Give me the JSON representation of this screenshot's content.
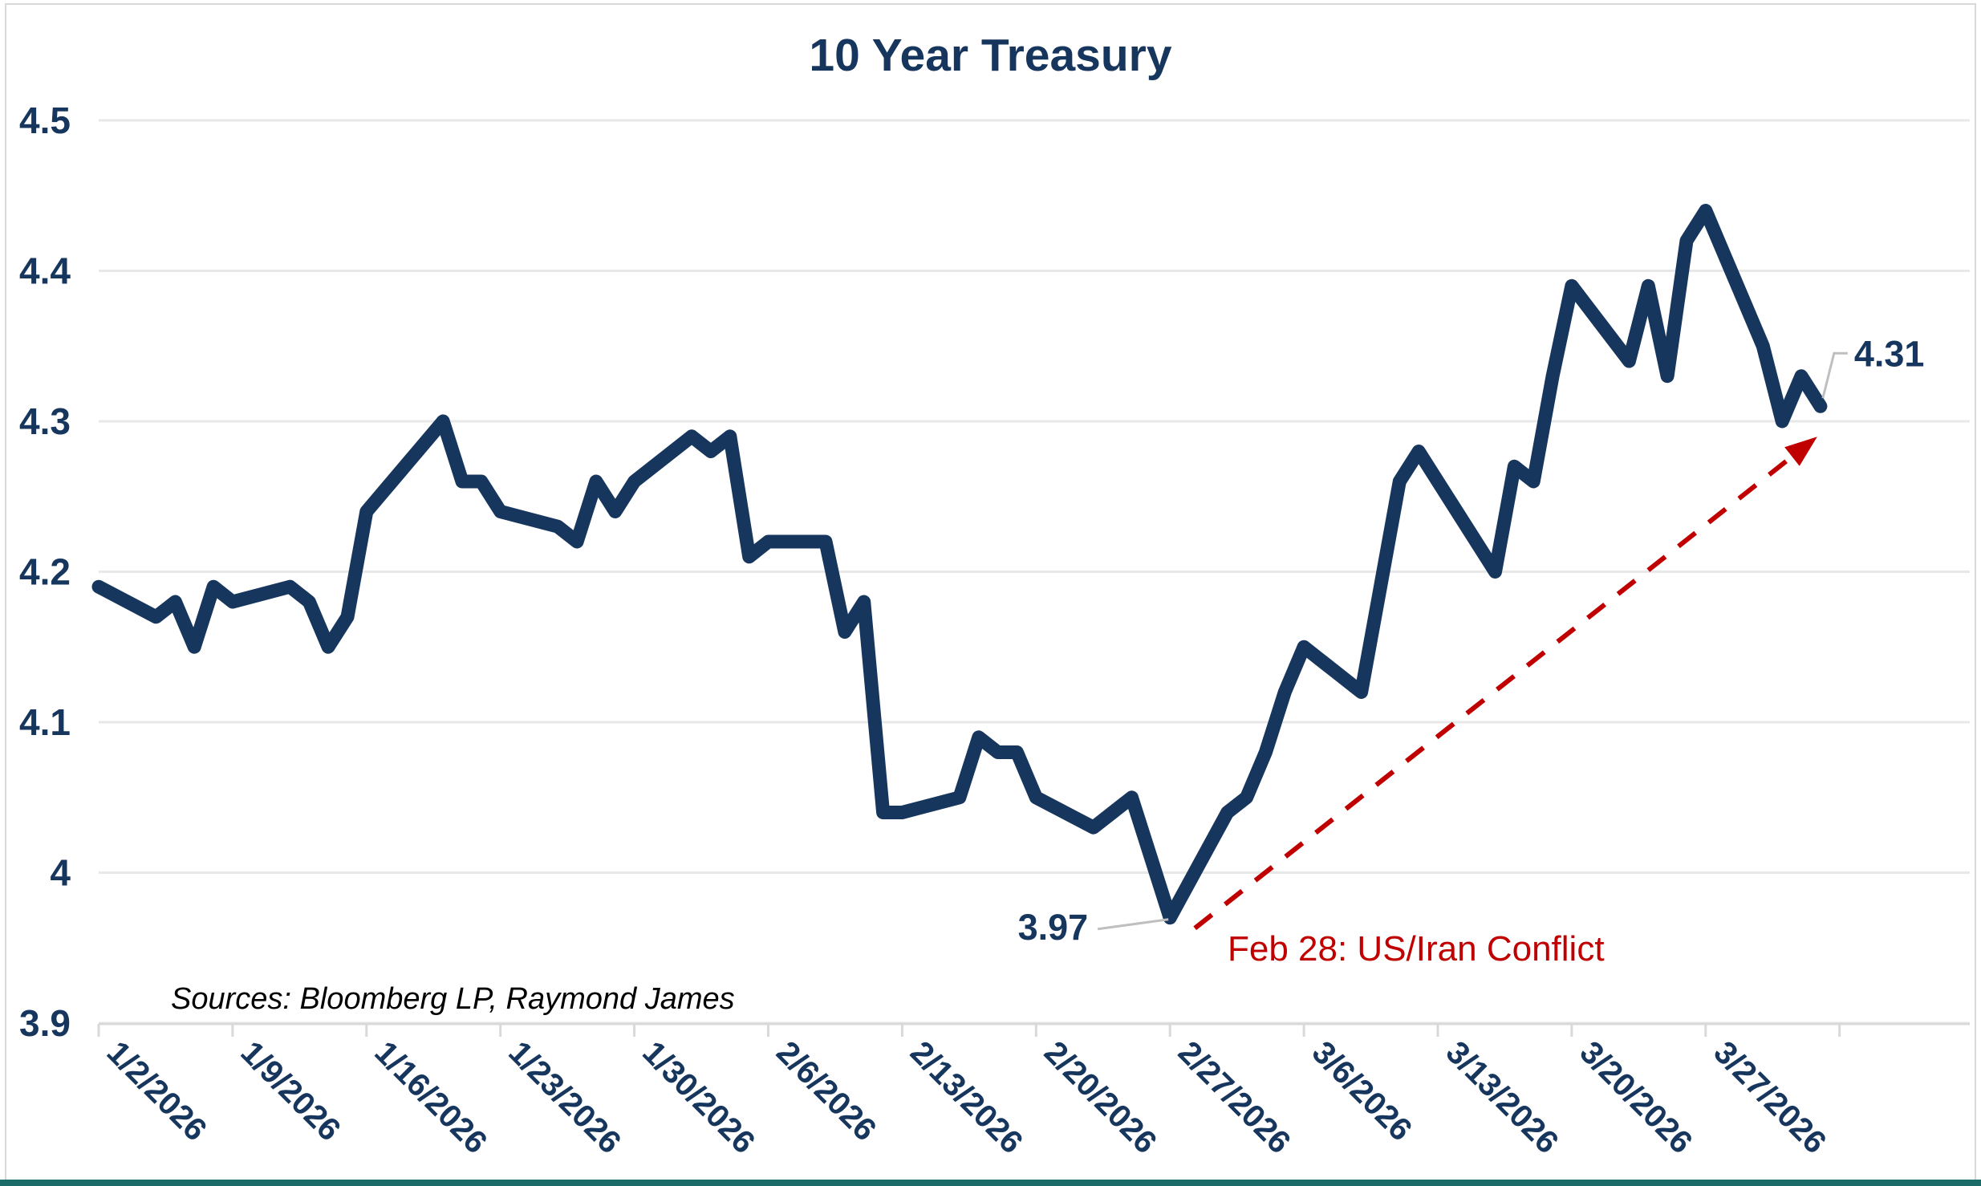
{
  "title": "10 Year Treasury",
  "source_note": "Sources: Bloomberg LP, Raymond James",
  "annotations": {
    "low_point_label": "3.97",
    "end_point_label": "4.31",
    "event_label": "Feb 28: US/Iran Conflict"
  },
  "colors": {
    "line": "#17365d",
    "text": "#17365d",
    "event_red": "#c00000",
    "gridline": "#e8e8e8",
    "axis": "#d9d9d9",
    "leader": "#bfbfbf",
    "bottom_bar_teal": "#1b6b68",
    "background": "#ffffff"
  },
  "chart_data": {
    "type": "line",
    "title": "10 Year Treasury",
    "xlabel": "",
    "ylabel": "",
    "ylim": [
      3.9,
      4.5
    ],
    "grid": true,
    "legend": "none",
    "y_tick_labels": [
      "4.5",
      "4.4",
      "4.3",
      "4.2",
      "4.1",
      "4",
      "3.9"
    ],
    "x_tick_labels": [
      "1/2/2026",
      "1/9/2026",
      "1/16/2026",
      "1/23/2026",
      "1/30/2026",
      "2/6/2026",
      "2/13/2026",
      "2/20/2026",
      "2/27/2026",
      "3/6/2026",
      "3/13/2026",
      "3/20/2026",
      "3/27/2026"
    ],
    "series": [
      {
        "name": "10 Year Treasury",
        "points": [
          [
            "1/2/2026",
            4.19
          ],
          [
            "1/5/2026",
            4.17
          ],
          [
            "1/6/2026",
            4.18
          ],
          [
            "1/7/2026",
            4.15
          ],
          [
            "1/8/2026",
            4.19
          ],
          [
            "1/9/2026",
            4.18
          ],
          [
            "1/12/2026",
            4.19
          ],
          [
            "1/13/2026",
            4.18
          ],
          [
            "1/14/2026",
            4.15
          ],
          [
            "1/15/2026",
            4.17
          ],
          [
            "1/16/2026",
            4.24
          ],
          [
            "1/20/2026",
            4.3
          ],
          [
            "1/21/2026",
            4.26
          ],
          [
            "1/22/2026",
            4.26
          ],
          [
            "1/23/2026",
            4.24
          ],
          [
            "1/26/2026",
            4.23
          ],
          [
            "1/27/2026",
            4.22
          ],
          [
            "1/28/2026",
            4.26
          ],
          [
            "1/29/2026",
            4.24
          ],
          [
            "1/30/2026",
            4.26
          ],
          [
            "2/2/2026",
            4.29
          ],
          [
            "2/3/2026",
            4.28
          ],
          [
            "2/4/2026",
            4.29
          ],
          [
            "2/5/2026",
            4.21
          ],
          [
            "2/6/2026",
            4.22
          ],
          [
            "2/9/2026",
            4.22
          ],
          [
            "2/10/2026",
            4.16
          ],
          [
            "2/11/2026",
            4.18
          ],
          [
            "2/12/2026",
            4.04
          ],
          [
            "2/13/2026",
            4.04
          ],
          [
            "2/16/2026",
            4.05
          ],
          [
            "2/17/2026",
            4.09
          ],
          [
            "2/18/2026",
            4.08
          ],
          [
            "2/19/2026",
            4.08
          ],
          [
            "2/20/2026",
            4.05
          ],
          [
            "2/23/2026",
            4.03
          ],
          [
            "2/24/2026",
            4.04
          ],
          [
            "2/25/2026",
            4.05
          ],
          [
            "2/26/2026",
            4.01
          ],
          [
            "2/27/2026",
            3.97
          ],
          [
            "3/2/2026",
            4.04
          ],
          [
            "3/3/2026",
            4.05
          ],
          [
            "3/4/2026",
            4.08
          ],
          [
            "3/5/2026",
            4.12
          ],
          [
            "3/6/2026",
            4.15
          ],
          [
            "3/9/2026",
            4.12
          ],
          [
            "3/10/2026",
            4.19
          ],
          [
            "3/11/2026",
            4.26
          ],
          [
            "3/12/2026",
            4.28
          ],
          [
            "3/13/2026",
            4.26
          ],
          [
            "3/16/2026",
            4.2
          ],
          [
            "3/17/2026",
            4.27
          ],
          [
            "3/18/2026",
            4.26
          ],
          [
            "3/19/2026",
            4.33
          ],
          [
            "3/20/2026",
            4.39
          ],
          [
            "3/23/2026",
            4.34
          ],
          [
            "3/24/2026",
            4.39
          ],
          [
            "3/25/2026",
            4.33
          ],
          [
            "3/26/2026",
            4.42
          ],
          [
            "3/27/2026",
            4.44
          ],
          [
            "3/30/2026",
            4.35
          ],
          [
            "3/31/2026",
            4.3
          ],
          [
            "4/1/2026",
            4.33
          ],
          [
            "4/2/2026",
            4.31
          ]
        ]
      }
    ]
  }
}
